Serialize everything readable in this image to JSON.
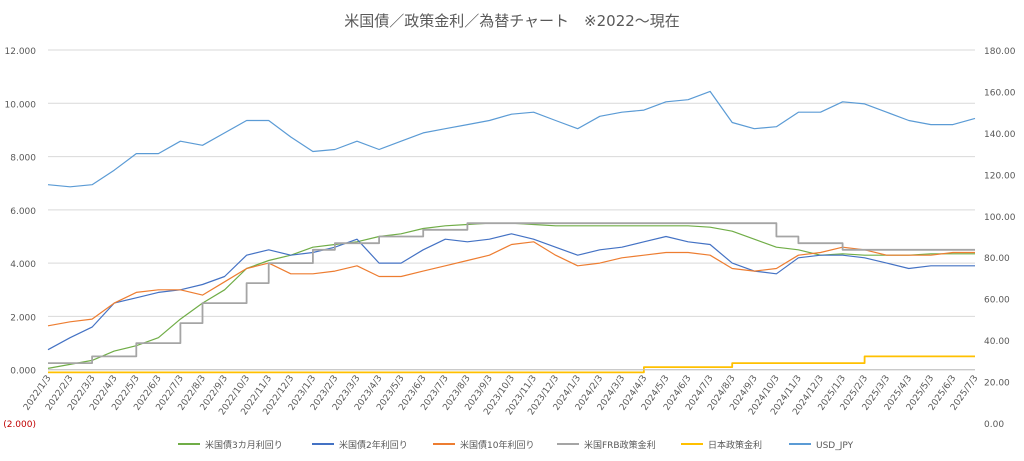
{
  "chart_data": {
    "type": "line",
    "title": "米国債／政策金利／為替チャート　※2022～現在",
    "x_labels": [
      "2022/1/3",
      "2022/2/3",
      "2022/3/3",
      "2022/4/3",
      "2022/5/3",
      "2022/6/3",
      "2022/7/3",
      "2022/8/3",
      "2022/9/3",
      "2022/10/3",
      "2022/11/3",
      "2022/12/3",
      "2023/1/3",
      "2023/2/3",
      "2023/3/3",
      "2023/4/3",
      "2023/5/3",
      "2023/6/3",
      "2023/7/3",
      "2023/8/3",
      "2023/9/3",
      "2023/10/3",
      "2023/11/3",
      "2023/12/3",
      "2024/1/3",
      "2024/2/3",
      "2024/3/3",
      "2024/4/3",
      "2024/5/3",
      "2024/6/3",
      "2024/7/3",
      "2024/8/3",
      "2024/9/3",
      "2024/10/3",
      "2024/11/3",
      "2024/12/3",
      "2025/1/3",
      "2025/2/3",
      "2025/3/3",
      "2025/4/3",
      "2025/5/3",
      "2025/6/3",
      "2025/7/3"
    ],
    "y_left": {
      "min": -2,
      "max": 12,
      "ticks": [
        "(2.000)",
        "0.000",
        "2.000",
        "4.000",
        "6.000",
        "8.000",
        "10.000",
        "12.000"
      ],
      "negative_color": "#c00000"
    },
    "y_right": {
      "min": 0,
      "max": 180,
      "ticks": [
        "0.00",
        "20.00",
        "40.00",
        "60.00",
        "80.00",
        "100.00",
        "120.00",
        "140.00",
        "160.00",
        "180.00"
      ]
    },
    "grid": true,
    "legend_position": "bottom",
    "series": [
      {
        "name": "米国債3カ月利回り",
        "axis": "left",
        "color": "#70ad47",
        "step": false,
        "values": [
          0.05,
          0.2,
          0.35,
          0.7,
          0.9,
          1.2,
          1.9,
          2.5,
          3.0,
          3.8,
          4.1,
          4.3,
          4.6,
          4.7,
          4.8,
          5.0,
          5.1,
          5.3,
          5.4,
          5.45,
          5.5,
          5.5,
          5.45,
          5.4,
          5.4,
          5.4,
          5.4,
          5.4,
          5.4,
          5.4,
          5.35,
          5.2,
          4.9,
          4.6,
          4.5,
          4.3,
          4.35,
          4.3,
          4.3,
          4.3,
          4.35,
          4.35,
          4.35
        ]
      },
      {
        "name": "米国債2年利回り",
        "axis": "left",
        "color": "#4472c4",
        "step": false,
        "values": [
          0.75,
          1.2,
          1.6,
          2.5,
          2.7,
          2.9,
          3.0,
          3.2,
          3.5,
          4.3,
          4.5,
          4.3,
          4.4,
          4.6,
          4.9,
          4.0,
          4.0,
          4.5,
          4.9,
          4.8,
          4.9,
          5.1,
          4.9,
          4.6,
          4.3,
          4.5,
          4.6,
          4.8,
          5.0,
          4.8,
          4.7,
          4.0,
          3.7,
          3.6,
          4.2,
          4.3,
          4.3,
          4.2,
          4.0,
          3.8,
          3.9,
          3.9,
          3.9
        ]
      },
      {
        "name": "米国債10年利回り",
        "axis": "left",
        "color": "#ed7d31",
        "step": false,
        "values": [
          1.65,
          1.8,
          1.9,
          2.5,
          2.9,
          3.0,
          3.0,
          2.8,
          3.3,
          3.8,
          4.0,
          3.6,
          3.6,
          3.7,
          3.9,
          3.5,
          3.5,
          3.7,
          3.9,
          4.1,
          4.3,
          4.7,
          4.8,
          4.3,
          3.9,
          4.0,
          4.2,
          4.3,
          4.4,
          4.4,
          4.3,
          3.8,
          3.7,
          3.8,
          4.3,
          4.4,
          4.6,
          4.5,
          4.3,
          4.3,
          4.3,
          4.4,
          4.4
        ]
      },
      {
        "name": "米国FRB政策金利",
        "axis": "left",
        "color": "#a5a5a5",
        "step": true,
        "values": [
          0.25,
          0.25,
          0.5,
          0.5,
          1.0,
          1.0,
          1.75,
          2.5,
          2.5,
          3.25,
          4.0,
          4.0,
          4.5,
          4.75,
          4.75,
          5.0,
          5.0,
          5.25,
          5.25,
          5.5,
          5.5,
          5.5,
          5.5,
          5.5,
          5.5,
          5.5,
          5.5,
          5.5,
          5.5,
          5.5,
          5.5,
          5.5,
          5.5,
          5.0,
          4.75,
          4.75,
          4.5,
          4.5,
          4.5,
          4.5,
          4.5,
          4.5,
          4.5
        ]
      },
      {
        "name": "日本政策金利",
        "axis": "left",
        "color": "#ffc000",
        "step": true,
        "values": [
          -0.1,
          -0.1,
          -0.1,
          -0.1,
          -0.1,
          -0.1,
          -0.1,
          -0.1,
          -0.1,
          -0.1,
          -0.1,
          -0.1,
          -0.1,
          -0.1,
          -0.1,
          -0.1,
          -0.1,
          -0.1,
          -0.1,
          -0.1,
          -0.1,
          -0.1,
          -0.1,
          -0.1,
          -0.1,
          -0.1,
          -0.1,
          0.1,
          0.1,
          0.1,
          0.1,
          0.25,
          0.25,
          0.25,
          0.25,
          0.25,
          0.25,
          0.5,
          0.5,
          0.5,
          0.5,
          0.5,
          0.5
        ]
      },
      {
        "name": "USD_JPY",
        "axis": "right",
        "color": "#5b9bd5",
        "step": false,
        "values": [
          115,
          114,
          115,
          122,
          130,
          130,
          136,
          134,
          140,
          146,
          146,
          138,
          131,
          132,
          136,
          132,
          136,
          140,
          142,
          144,
          146,
          149,
          150,
          146,
          142,
          148,
          150,
          151,
          155,
          156,
          160,
          145,
          142,
          143,
          150,
          150,
          155,
          154,
          150,
          146,
          144,
          144,
          147
        ]
      }
    ]
  }
}
